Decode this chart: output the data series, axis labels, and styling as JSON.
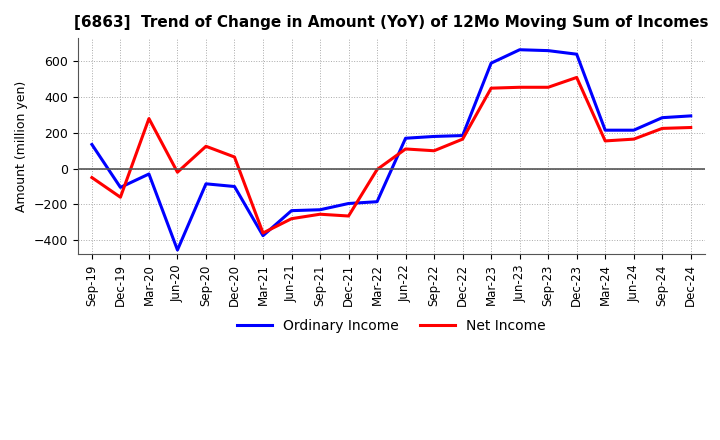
{
  "title": "[6863]  Trend of Change in Amount (YoY) of 12Mo Moving Sum of Incomes",
  "ylabel": "Amount (million yen)",
  "ylim": [
    -480,
    730
  ],
  "yticks": [
    -400,
    -200,
    0,
    200,
    400,
    600
  ],
  "background_color": "#ffffff",
  "grid_color": "#aaaaaa",
  "ordinary_income_color": "#0000ff",
  "net_income_color": "#ff0000",
  "x_labels": [
    "Sep-19",
    "Dec-19",
    "Mar-20",
    "Jun-20",
    "Sep-20",
    "Dec-20",
    "Mar-21",
    "Jun-21",
    "Sep-21",
    "Dec-21",
    "Mar-22",
    "Jun-22",
    "Sep-22",
    "Dec-22",
    "Mar-23",
    "Jun-23",
    "Sep-23",
    "Dec-23",
    "Mar-24",
    "Jun-24",
    "Sep-24",
    "Dec-24"
  ],
  "ordinary_income": [
    135,
    -105,
    -30,
    -455,
    -85,
    -100,
    -375,
    -235,
    -230,
    -195,
    -185,
    170,
    180,
    185,
    590,
    665,
    660,
    640,
    215,
    215,
    285,
    295
  ],
  "net_income": [
    -50,
    -160,
    280,
    -20,
    125,
    65,
    -360,
    -280,
    -255,
    -265,
    -5,
    110,
    100,
    165,
    450,
    455,
    455,
    510,
    155,
    165,
    225,
    230
  ],
  "legend_labels": [
    "Ordinary Income",
    "Net Income"
  ]
}
